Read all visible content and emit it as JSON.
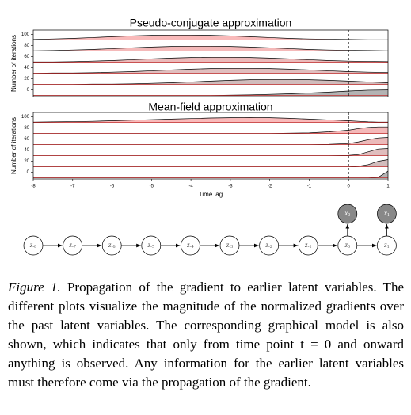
{
  "chart_data": [
    {
      "type": "ridgeline",
      "title": "Pseudo-conjugate approximation",
      "y_label": "Number of iterations",
      "xlim": [
        -8,
        1
      ],
      "ylim": [
        -12,
        108
      ],
      "yticks": [
        0,
        20,
        40,
        60,
        80,
        100
      ],
      "vline": 0,
      "x": [
        -8,
        -7.5,
        -7,
        -6.5,
        -6,
        -5.5,
        -5,
        -4.5,
        -4,
        -3.5,
        -3,
        -2.5,
        -2,
        -1.5,
        -1,
        -0.5,
        0,
        0.5,
        1
      ],
      "series": [
        {
          "baseline": 90,
          "color": "#f7a3a3",
          "values": [
            1,
            2,
            3,
            4.5,
            6,
            7.5,
            8.5,
            9,
            9,
            8.5,
            7.5,
            6,
            4.5,
            3,
            2,
            1.5,
            1,
            0.5,
            0.5
          ]
        },
        {
          "baseline": 70,
          "color": "#f0a2a2",
          "values": [
            0.5,
            1,
            2,
            3,
            4.5,
            6,
            7.5,
            8.5,
            9,
            9,
            8.5,
            7.5,
            6,
            4.5,
            3,
            2,
            1.5,
            1,
            0.5
          ]
        },
        {
          "baseline": 50,
          "color": "#e4a3a3",
          "values": [
            0.5,
            0.5,
            1,
            2,
            3,
            4.5,
            6,
            7.5,
            8.5,
            9,
            9,
            8.5,
            7.5,
            6,
            4.5,
            3,
            2,
            1.5,
            1
          ]
        },
        {
          "baseline": 30,
          "color": "#d6a8a8",
          "values": [
            0,
            0.5,
            0.5,
            1,
            2,
            3,
            4.5,
            6,
            7.5,
            8.5,
            9,
            9,
            8.5,
            7.5,
            6,
            4.5,
            3,
            2,
            1.5
          ]
        },
        {
          "baseline": 10,
          "color": "#c2a5a5",
          "values": [
            0,
            0,
            0,
            0.5,
            0.5,
            1,
            2,
            3,
            4.5,
            6,
            7.5,
            8.5,
            9,
            9,
            8.5,
            7.5,
            6,
            4.5,
            3
          ]
        },
        {
          "baseline": -10,
          "color": "#9a9a9a",
          "values": [
            0,
            0,
            0,
            0,
            0,
            0,
            0,
            0,
            0,
            0,
            0.5,
            1,
            2,
            3,
            4.5,
            6,
            8,
            9.5,
            10
          ]
        }
      ]
    },
    {
      "type": "ridgeline",
      "title": "Mean-field approximation",
      "y_label": "Number of iterations",
      "x_label": "Time lag",
      "xlim": [
        -8,
        1
      ],
      "ylim": [
        -12,
        108
      ],
      "yticks": [
        0,
        20,
        40,
        60,
        80,
        100
      ],
      "xticks": [
        -8,
        -7,
        -6,
        -5,
        -4,
        -3,
        -2,
        -1,
        0,
        1
      ],
      "vline": 0,
      "x": [
        -8,
        -7.5,
        -7,
        -6.5,
        -6,
        -5.5,
        -5,
        -4.5,
        -4,
        -3.5,
        -3,
        -2.5,
        -2,
        -1.5,
        -1,
        -0.5,
        0,
        0.25,
        0.5,
        0.75,
        1
      ],
      "series": [
        {
          "baseline": 90,
          "color": "#f7a3a3",
          "values": [
            0.5,
            1,
            1.5,
            2,
            3,
            4,
            5,
            6,
            7,
            8,
            8.5,
            9,
            8.5,
            7.5,
            6,
            4.5,
            3,
            2,
            1,
            0.5,
            0.5
          ]
        },
        {
          "baseline": 70,
          "color": "#f0a2a2",
          "values": [
            0,
            0,
            0,
            0,
            0,
            0,
            0,
            0,
            0,
            0,
            0,
            0,
            0,
            0.5,
            1,
            3,
            6,
            9,
            11,
            12,
            12
          ]
        },
        {
          "baseline": 50,
          "color": "#e4a3a3",
          "values": [
            0,
            0,
            0,
            0,
            0,
            0,
            0,
            0,
            0,
            0,
            0,
            0,
            0,
            0,
            0,
            0.5,
            2,
            5,
            9,
            12,
            13
          ]
        },
        {
          "baseline": 30,
          "color": "#d6a8a8",
          "values": [
            0,
            0,
            0,
            0,
            0,
            0,
            0,
            0,
            0,
            0,
            0,
            0,
            0,
            0,
            0,
            0,
            0.5,
            2,
            7,
            12,
            13
          ]
        },
        {
          "baseline": 10,
          "color": "#c2a5a5",
          "values": [
            0,
            0,
            0,
            0,
            0,
            0,
            0,
            0,
            0,
            0,
            0,
            0,
            0,
            0,
            0,
            0,
            0,
            1,
            4,
            10,
            13
          ]
        },
        {
          "baseline": -10,
          "color": "#9a9a9a",
          "values": [
            0,
            0,
            0,
            0,
            0,
            0,
            0,
            0,
            0,
            0,
            0,
            0,
            0,
            0,
            0,
            0,
            0,
            0,
            0,
            1,
            12
          ]
        }
      ]
    }
  ],
  "graph": {
    "nodes": [
      {
        "label": "z",
        "sub": "-8"
      },
      {
        "label": "z",
        "sub": "-7"
      },
      {
        "label": "z",
        "sub": "-6"
      },
      {
        "label": "z",
        "sub": "-5"
      },
      {
        "label": "z",
        "sub": "-4"
      },
      {
        "label": "z",
        "sub": "-3"
      },
      {
        "label": "z",
        "sub": "-2"
      },
      {
        "label": "z",
        "sub": "-1"
      },
      {
        "label": "z",
        "sub": "0"
      },
      {
        "label": "z",
        "sub": "1"
      }
    ],
    "observed": [
      {
        "label": "x",
        "sub": "0"
      },
      {
        "label": "x",
        "sub": "1"
      }
    ]
  },
  "caption": {
    "label": "Figure 1.",
    "text": "Propagation of the gradient to earlier latent variables. The different plots visualize the magnitude of the normalized gradients over the past latent variables. The corresponding graphical model is also shown, which indicates that only from time point t = 0 and onward anything is observed. Any information for the earlier latent variables must therefore come via the propagation of the gradient."
  }
}
